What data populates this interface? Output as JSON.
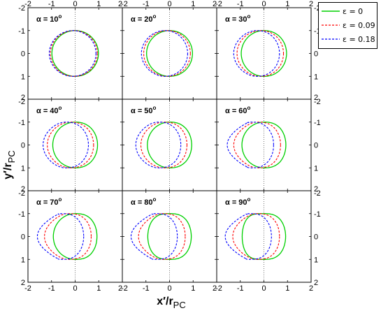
{
  "chart_data": {
    "type": "line",
    "grid_rows": 3,
    "grid_cols": 3,
    "xlim": [
      -2,
      2
    ],
    "ylim": [
      -2,
      2
    ],
    "y_inverted": true,
    "xticks": [
      -2,
      -1,
      0,
      1,
      2
    ],
    "yticks": [
      -2,
      -1,
      0,
      1,
      2
    ],
    "xlabel": "x'/r_PC",
    "ylabel": "y'/r_PC",
    "xlabel_main": "x",
    "xlabel_prime": "′",
    "xlabel_denom": "/r",
    "xlabel_sub": "PC",
    "ylabel_main": "y",
    "ylabel_prime": "′",
    "ylabel_denom": "/r",
    "ylabel_sub": "PC",
    "legend_placement": "outside top-right",
    "series": [
      {
        "name": "ε = 0",
        "color": "#00d000",
        "dash": "solid",
        "epsilon": 0
      },
      {
        "name": "ε = 0.09",
        "color": "#ff0000",
        "dash": "dashed",
        "epsilon": 0.09
      },
      {
        "name": "ε = 0.18",
        "color": "#0000ff",
        "dash": "dashed",
        "epsilon": 0.18
      }
    ],
    "panels": [
      {
        "alpha_deg": 10,
        "label": "α = 10",
        "sup": "o"
      },
      {
        "alpha_deg": 20,
        "label": "α = 20",
        "sup": "o"
      },
      {
        "alpha_deg": 30,
        "label": "α = 30",
        "sup": "o"
      },
      {
        "alpha_deg": 40,
        "label": "α = 40",
        "sup": "o"
      },
      {
        "alpha_deg": 50,
        "label": "α = 50",
        "sup": "o"
      },
      {
        "alpha_deg": 60,
        "label": "α = 60",
        "sup": "o"
      },
      {
        "alpha_deg": 70,
        "label": "α = 70",
        "sup": "o"
      },
      {
        "alpha_deg": 80,
        "label": "α = 80",
        "sup": "o"
      },
      {
        "alpha_deg": 90,
        "label": "α = 90",
        "sup": "o"
      }
    ]
  },
  "colors": {
    "axis": "#000000",
    "zero_line": "#555555"
  }
}
